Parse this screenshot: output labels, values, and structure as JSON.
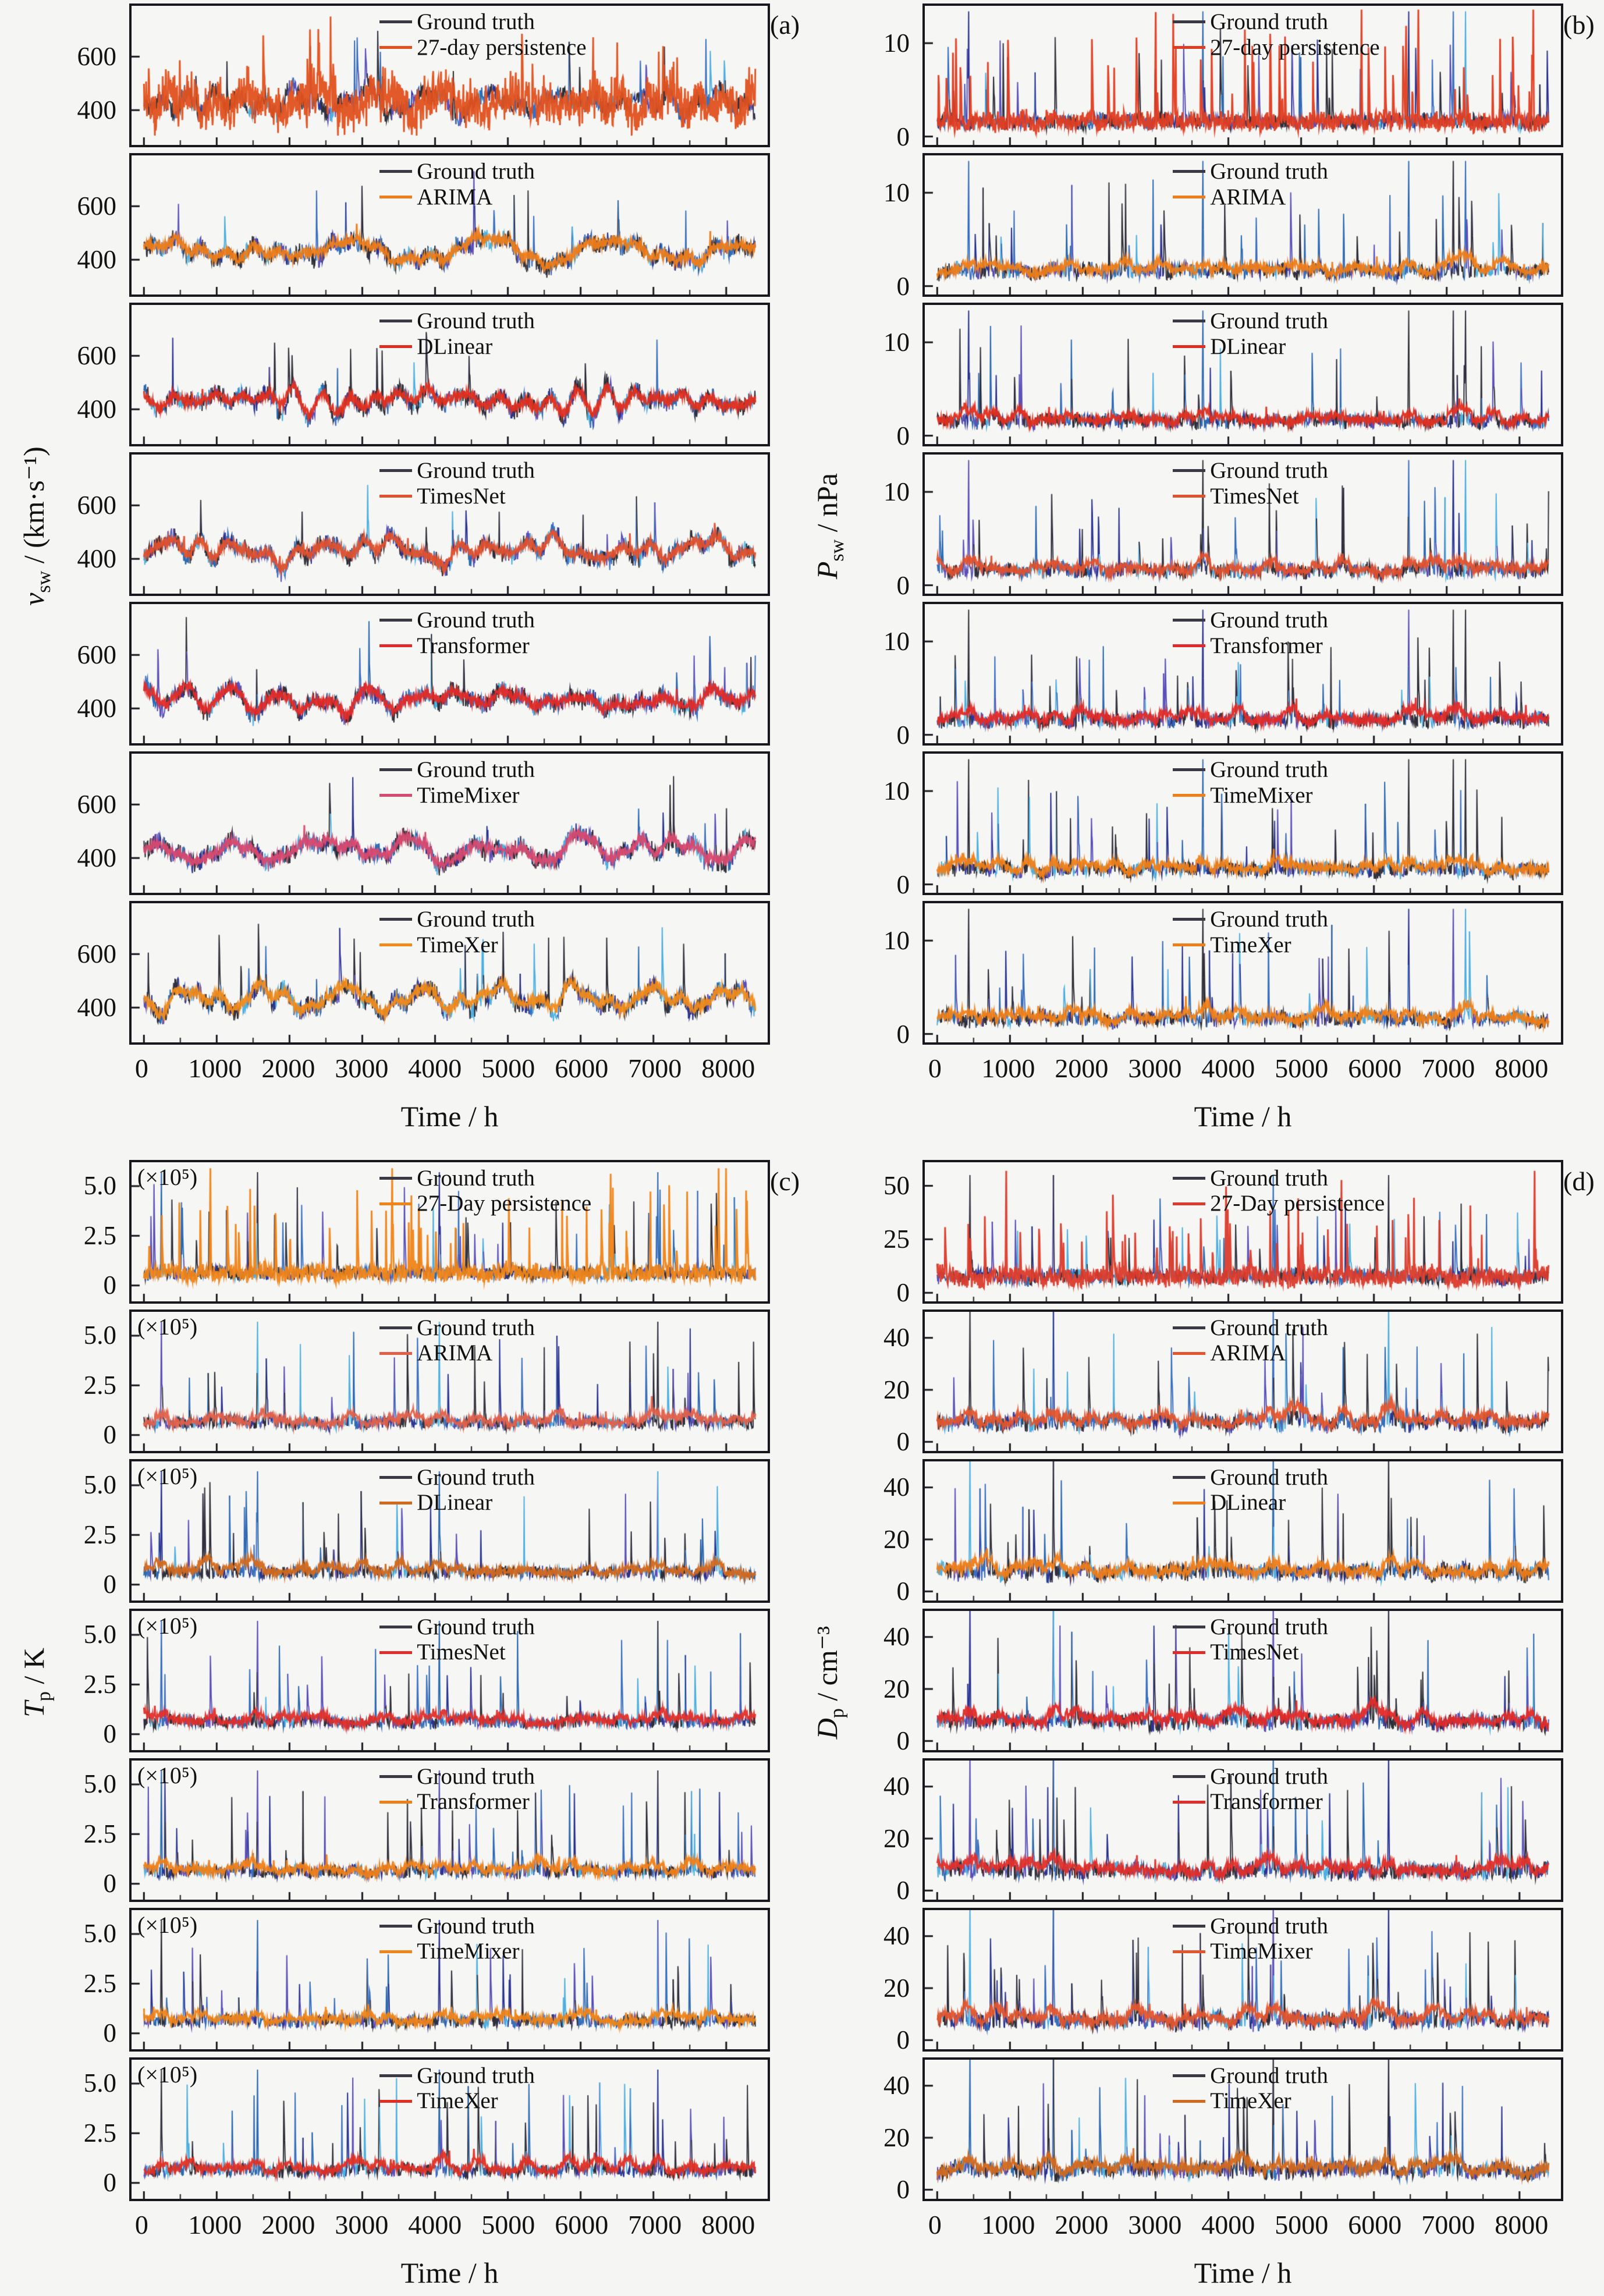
{
  "figure": {
    "x_label": "Time / h",
    "x_tick_labels": [
      "0",
      "1000",
      "2000",
      "3000",
      "4000",
      "5000",
      "6000",
      "7000",
      "8000"
    ],
    "ground_truth_label": "Ground truth",
    "background": "#f5f5f3",
    "axis_color": "#17171d",
    "ground_truth_color": "#3a3a44",
    "gt_palette": [
      "#34343e",
      "#2b3590",
      "#3a6fbe",
      "#4fb0df",
      "#5a50b6",
      "#2e2e38",
      "#2e6ab0",
      "#303040"
    ]
  },
  "chart_data": [
    {
      "type": "line",
      "panel": "a",
      "letter": "(a)",
      "ylabel": {
        "symbol": "v",
        "subscript": "sw",
        "unit": " / (km·s⁻¹)"
      },
      "ylabel_text": "v_sw / (km·s⁻¹)",
      "x_label": "Time / h",
      "x_range_h": [
        0,
        8400
      ],
      "x_ticks": [
        0,
        1000,
        2000,
        3000,
        4000,
        5000,
        6000,
        7000,
        8000
      ],
      "ylim": [
        270,
        790
      ],
      "y_ticks": [
        {
          "v": 400,
          "label": "400"
        },
        {
          "v": 600,
          "label": "600"
        }
      ],
      "value_range_approx": [
        310,
        740
      ],
      "grid": false,
      "legend_position": "top-center",
      "rows": [
        {
          "model": "27-day persistence",
          "color": "#e0511d"
        },
        {
          "model": "ARIMA",
          "color": "#ee7d1a"
        },
        {
          "model": "DLinear",
          "color": "#e02f1f"
        },
        {
          "model": "TimesNet",
          "color": "#e0512e"
        },
        {
          "model": "Transformer",
          "color": "#e12b28"
        },
        {
          "model": "TimeMixer",
          "color": "#d84a70"
        },
        {
          "model": "TimeXer",
          "color": "#f08b1b"
        }
      ],
      "sim": {
        "style": "wavy",
        "base": 430,
        "wave": 85,
        "noise": 34,
        "spikeP": 0.012,
        "spikeAmp": [
          120,
          260
        ],
        "clamp": [
          305,
          750
        ],
        "tall": [],
        "tallAmp": 0
      }
    },
    {
      "type": "line",
      "panel": "b",
      "letter": "(b)",
      "ylabel": {
        "symbol": "P",
        "subscript": "sw",
        "unit": " / nPa"
      },
      "ylabel_text": "P_sw / nPa",
      "x_label": "Time / h",
      "x_range_h": [
        0,
        8400
      ],
      "x_ticks": [
        0,
        1000,
        2000,
        3000,
        4000,
        5000,
        6000,
        7000,
        8000
      ],
      "ylim": [
        -0.9,
        14
      ],
      "y_ticks": [
        {
          "v": 0,
          "label": "0"
        },
        {
          "v": 10,
          "label": "10"
        }
      ],
      "value_range_approx": [
        0.2,
        13.5
      ],
      "grid": false,
      "legend_position": "top-center",
      "rows": [
        {
          "model": "27-day persistence",
          "color": "#df3d22"
        },
        {
          "model": "ARIMA",
          "color": "#ee7d1a"
        },
        {
          "model": "DLinear",
          "color": "#e02f1f"
        },
        {
          "model": "TimesNet",
          "color": "#e0512e"
        },
        {
          "model": "Transformer",
          "color": "#e12b28"
        },
        {
          "model": "TimeMixer",
          "color": "#ef7f18"
        },
        {
          "model": "TimeXer",
          "color": "#ef7f18"
        }
      ],
      "sim": {
        "style": "spiky",
        "base": 1.6,
        "wave": 0.5,
        "noise": 0.75,
        "spikeP": 0.03,
        "spikeAmp": [
          2.5,
          9.5
        ],
        "clamp": [
          0.1,
          13.6
        ],
        "tall": [
          430,
          3650,
          6480,
          7090,
          7260
        ],
        "tallAmp": 13.4
      }
    },
    {
      "type": "line",
      "panel": "c",
      "letter": "(c)",
      "annotation": "(×10⁵)",
      "ylabel": {
        "symbol": "T",
        "subscript": "p",
        "unit": " / K"
      },
      "ylabel_text": "T_p / K",
      "x_label": "Time / h",
      "x_range_h": [
        0,
        8400
      ],
      "x_ticks": [
        0,
        1000,
        2000,
        3000,
        4000,
        5000,
        6000,
        7000,
        8000
      ],
      "ylim": [
        -0.8,
        6.2
      ],
      "y_ticks": [
        {
          "v": 0,
          "label": "0"
        },
        {
          "v": 2.5,
          "label": "2.5"
        },
        {
          "v": 5.0,
          "label": "5.0"
        }
      ],
      "value_range_approx": [
        0.05,
        5.9
      ],
      "unit_scale": "values ×10⁵",
      "grid": false,
      "legend_position": "top-center",
      "rows": [
        {
          "model": "27-Day persistence",
          "color": "#ef8418"
        },
        {
          "model": "ARIMA",
          "color": "#e2604a"
        },
        {
          "model": "DLinear",
          "color": "#d2691e"
        },
        {
          "model": "TimesNet",
          "color": "#e02f2a"
        },
        {
          "model": "Transformer",
          "color": "#ef7f18"
        },
        {
          "model": "TimeMixer",
          "color": "#ef8418"
        },
        {
          "model": "TimeXer",
          "color": "#e03024"
        }
      ],
      "sim": {
        "style": "spiky",
        "base": 0.62,
        "wave": 0.18,
        "noise": 0.3,
        "spikeP": 0.028,
        "spikeAmp": [
          1.1,
          4.5
        ],
        "clamp": [
          0.05,
          5.9
        ],
        "tall": [
          240,
          1560,
          4060,
          7060
        ],
        "tallAmp": 5.7
      }
    },
    {
      "type": "line",
      "panel": "d",
      "letter": "(d)",
      "ylabel": {
        "symbol": "D",
        "subscript": "p",
        "unit": " / cm⁻³"
      },
      "ylabel_text": "D_p / cm⁻³",
      "x_label": "Time / h",
      "x_range_h": [
        0,
        8400
      ],
      "x_ticks": [
        0,
        1000,
        2000,
        3000,
        4000,
        5000,
        6000,
        7000,
        8000
      ],
      "ylim": [
        -3.5,
        50
      ],
      "y_ticks": [
        {
          "v": 0,
          "label": "0"
        },
        {
          "v": 20,
          "label": "20"
        },
        {
          "v": 40,
          "label": "40"
        }
      ],
      "value_range_approx": [
        0.5,
        57
      ],
      "grid": false,
      "legend_position": "top-center",
      "rows": [
        {
          "model": "27-Day persistence",
          "color": "#db3b2b",
          "ylim": [
            -4,
            61
          ],
          "y_ticks": [
            {
              "v": 0,
              "label": "0"
            },
            {
              "v": 25,
              "label": "25"
            },
            {
              "v": 50,
              "label": "50"
            }
          ]
        },
        {
          "model": "ARIMA",
          "color": "#e2552e"
        },
        {
          "model": "DLinear",
          "color": "#ee7d1a"
        },
        {
          "model": "TimesNet",
          "color": "#e12b28"
        },
        {
          "model": "Transformer",
          "color": "#e02f2a"
        },
        {
          "model": "TimeMixer",
          "color": "#e2552e"
        },
        {
          "model": "TimeXer",
          "color": "#d2691e"
        }
      ],
      "sim": {
        "style": "spiky",
        "base": 7.5,
        "wave": 2.2,
        "noise": 3,
        "spikeP": 0.03,
        "spikeAmp": [
          9,
          36
        ],
        "clamp": [
          0.4,
          57
        ],
        "tall": [
          450,
          1600,
          4620,
          6200
        ],
        "tallAmp": 55
      }
    }
  ]
}
